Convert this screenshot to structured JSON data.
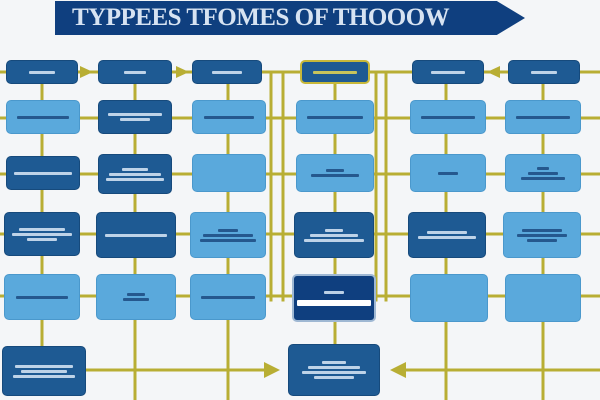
{
  "diagram": {
    "title": "TYPPEES TFOMES OF THOOOW"
  },
  "colors": {
    "banner": "#0f3f7f",
    "node_dark": "#1e5a93",
    "node_light": "#5aa9dc",
    "connector": "#b8ae34",
    "background": "#f4f6f8"
  }
}
